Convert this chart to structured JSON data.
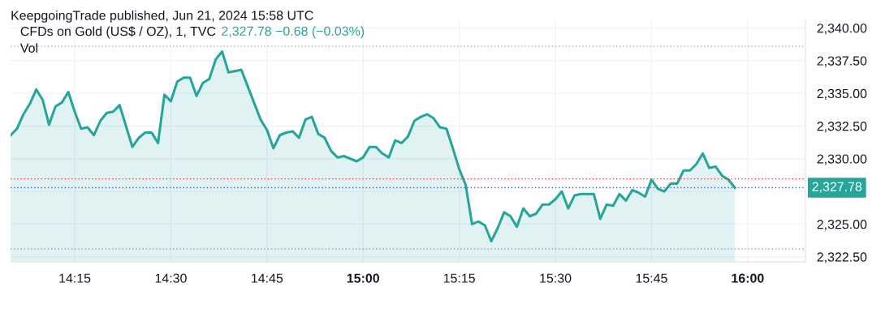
{
  "chart_data": {
    "type": "area",
    "title": "CFDs on Gold (US$ / OZ), 1, TVC",
    "subtitle": "2,327.78 −0.68 (−0.03%)",
    "annotations": [
      "KeepgoingTrade published, Jun 21, 2024 15:58 UTC",
      "Vol"
    ],
    "x": [
      "2024-06-21T14:05",
      "2024-06-21T14:06",
      "2024-06-21T14:07",
      "2024-06-21T14:08",
      "2024-06-21T14:09",
      "2024-06-21T14:10",
      "2024-06-21T14:11",
      "2024-06-21T14:12",
      "2024-06-21T14:13",
      "2024-06-21T14:14",
      "2024-06-21T14:15",
      "2024-06-21T14:16",
      "2024-06-21T14:17",
      "2024-06-21T14:18",
      "2024-06-21T14:19",
      "2024-06-21T14:20",
      "2024-06-21T14:21",
      "2024-06-21T14:22",
      "2024-06-21T14:24",
      "2024-06-21T14:25",
      "2024-06-21T14:26",
      "2024-06-21T14:27",
      "2024-06-21T14:28",
      "2024-06-21T14:29",
      "2024-06-21T14:30",
      "2024-06-21T14:31",
      "2024-06-21T14:32",
      "2024-06-21T14:33",
      "2024-06-21T14:34",
      "2024-06-21T14:35",
      "2024-06-21T14:36",
      "2024-06-21T14:37",
      "2024-06-21T14:38",
      "2024-06-21T14:39",
      "2024-06-21T14:40",
      "2024-06-21T14:41",
      "2024-06-21T14:44",
      "2024-06-21T14:45",
      "2024-06-21T14:46",
      "2024-06-21T14:47",
      "2024-06-21T14:48",
      "2024-06-21T14:49",
      "2024-06-21T14:50",
      "2024-06-21T14:51",
      "2024-06-21T14:52",
      "2024-06-21T14:53",
      "2024-06-21T14:54",
      "2024-06-21T14:55",
      "2024-06-21T14:56",
      "2024-06-21T14:57",
      "2024-06-21T14:58",
      "2024-06-21T14:59",
      "2024-06-21T15:00",
      "2024-06-21T15:01",
      "2024-06-21T15:02",
      "2024-06-21T15:03",
      "2024-06-21T15:04",
      "2024-06-21T15:05",
      "2024-06-21T15:06",
      "2024-06-21T15:07",
      "2024-06-21T15:08",
      "2024-06-21T15:09",
      "2024-06-21T15:10",
      "2024-06-21T15:11",
      "2024-06-21T15:12",
      "2024-06-21T15:13",
      "2024-06-21T15:14",
      "2024-06-21T15:15",
      "2024-06-21T15:16",
      "2024-06-21T15:17",
      "2024-06-21T15:18",
      "2024-06-21T15:19",
      "2024-06-21T15:20",
      "2024-06-21T15:21",
      "2024-06-21T15:22",
      "2024-06-21T15:23",
      "2024-06-21T15:24",
      "2024-06-21T15:25",
      "2024-06-21T15:26",
      "2024-06-21T15:27",
      "2024-06-21T15:28",
      "2024-06-21T15:29",
      "2024-06-21T15:30",
      "2024-06-21T15:31",
      "2024-06-21T15:32",
      "2024-06-21T15:33",
      "2024-06-21T15:34",
      "2024-06-21T15:36",
      "2024-06-21T15:37",
      "2024-06-21T15:38",
      "2024-06-21T15:39",
      "2024-06-21T15:40",
      "2024-06-21T15:41",
      "2024-06-21T15:42",
      "2024-06-21T15:43",
      "2024-06-21T15:44",
      "2024-06-21T15:45",
      "2024-06-21T15:46",
      "2024-06-21T15:47",
      "2024-06-21T15:48",
      "2024-06-21T15:49",
      "2024-06-21T15:50",
      "2024-06-21T15:51",
      "2024-06-21T15:52",
      "2024-06-21T15:53",
      "2024-06-21T15:54",
      "2024-06-21T15:55",
      "2024-06-21T15:56",
      "2024-06-21T15:57",
      "2024-06-21T15:58"
    ],
    "series": [
      {
        "color": "#26a69a",
        "values": [
          2331.8,
          2332.3,
          2333.4,
          2334.2,
          2335.3,
          2334.5,
          2332.6,
          2334.0,
          2334.3,
          2335.1,
          2333.6,
          2332.3,
          2332.4,
          2331.8,
          2332.9,
          2333.5,
          2333.6,
          2334.1,
          2330.9,
          2331.6,
          2332.0,
          2332.0,
          2331.2,
          2334.9,
          2334.4,
          2335.9,
          2336.2,
          2336.2,
          2334.8,
          2335.8,
          2336.1,
          2337.6,
          2338.2,
          2336.6,
          2336.7,
          2336.8,
          2333.0,
          2332.2,
          2330.8,
          2331.8,
          2332.0,
          2332.1,
          2331.6,
          2333.0,
          2333.2,
          2331.9,
          2331.6,
          2330.6,
          2330.1,
          2330.2,
          2330.0,
          2329.8,
          2330.1,
          2330.9,
          2330.9,
          2330.4,
          2330.1,
          2331.4,
          2331.2,
          2331.7,
          2332.9,
          2333.2,
          2333.4,
          2333.1,
          2332.4,
          2332.3,
          2330.8,
          2329.2,
          2328.0,
          2325.0,
          2325.2,
          2324.9,
          2323.7,
          2324.7,
          2325.9,
          2325.6,
          2324.8,
          2326.2,
          2325.6,
          2325.8,
          2326.5,
          2326.5,
          2326.9,
          2327.5,
          2326.2,
          2327.2,
          2327.3,
          2327.3,
          2325.4,
          2326.5,
          2326.4,
          2327.3,
          2326.8,
          2327.6,
          2327.4,
          2327.1,
          2328.4,
          2327.7,
          2327.5,
          2328.1,
          2328.1,
          2329.1,
          2329.1,
          2329.6,
          2330.4,
          2329.3,
          2329.4,
          2328.7,
          2328.4,
          2327.78
        ]
      }
    ],
    "xlim": [
      "2024-06-21T14:05",
      "2024-06-21T16:09"
    ],
    "xticks": [
      {
        "value": "2024-06-21T14:15",
        "label": "14:15"
      },
      {
        "value": "2024-06-21T14:30",
        "label": "14:30"
      },
      {
        "value": "2024-06-21T14:45",
        "label": "14:45"
      },
      {
        "value": "2024-06-21T15:00",
        "label": "15:00"
      },
      {
        "value": "2024-06-21T15:15",
        "label": "15:15"
      },
      {
        "value": "2024-06-21T15:30",
        "label": "15:30"
      },
      {
        "value": "2024-06-21T15:45",
        "label": "15:45"
      },
      {
        "value": "2024-06-21T16:00",
        "label": "16:00"
      }
    ],
    "ylim": [
      2322.1,
      2340.6
    ],
    "yticks": [
      {
        "value": 2322.5,
        "label": "2,322.50"
      },
      {
        "value": 2325,
        "label": "2,325.00"
      },
      {
        "value": 2327.5,
        "label": null
      },
      {
        "value": 2330,
        "label": "2,330.00"
      },
      {
        "value": 2332.5,
        "label": "2,332.50"
      },
      {
        "value": 2335,
        "label": "2,335.00"
      },
      {
        "value": 2337.5,
        "label": "2,337.50"
      },
      {
        "value": 2340,
        "label": "2,340.00"
      }
    ],
    "ref_lines": [
      {
        "axis": "y",
        "value": 2338.6,
        "color": "#9e9e9e",
        "line_style": "dotted"
      },
      {
        "axis": "y",
        "value": 2323.1,
        "color": "#9e9e9e",
        "line_style": "dotted"
      },
      {
        "axis": "y",
        "value": 2328.46,
        "color": "#f23645",
        "line_style": "dotted"
      },
      {
        "axis": "y",
        "value": 2327.78,
        "color": "#2962ff",
        "line_style": "dotted",
        "label": "2,327.78"
      }
    ],
    "grid": true
  }
}
